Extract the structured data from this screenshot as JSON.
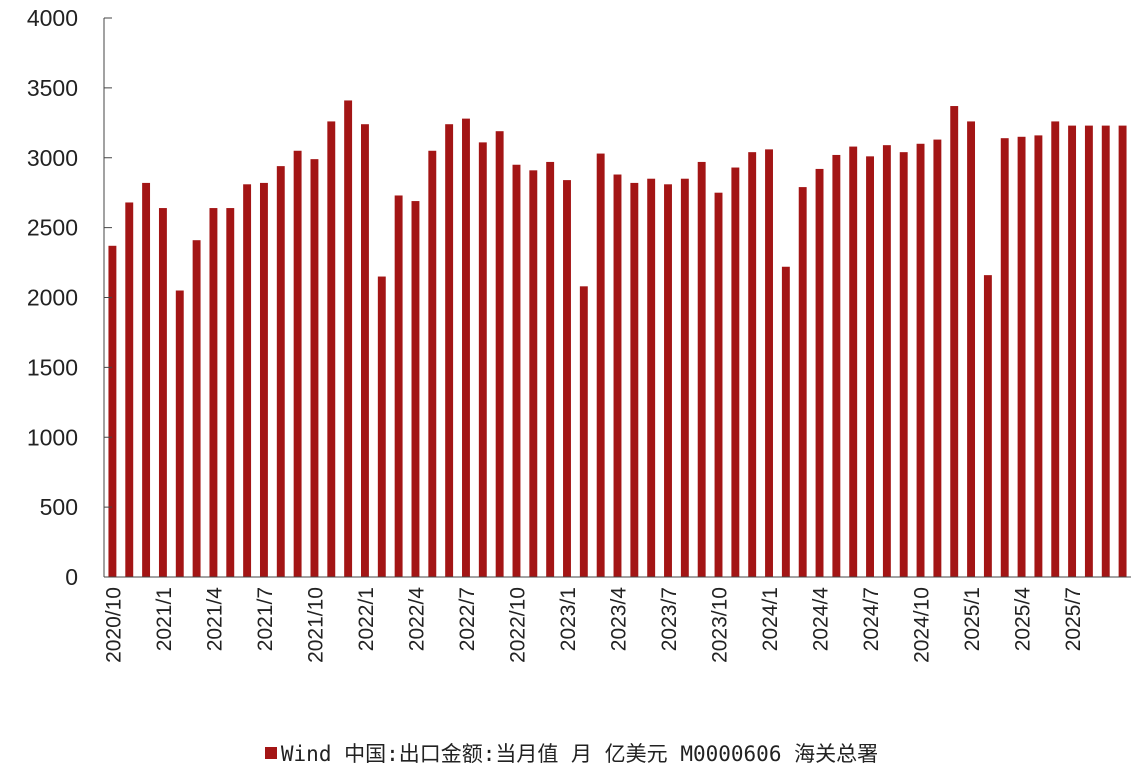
{
  "chart_data": {
    "type": "bar",
    "title": "",
    "xlabel": "",
    "ylabel": "",
    "ylim": [
      0,
      4000
    ],
    "yticks": [
      0,
      500,
      1000,
      1500,
      2000,
      2500,
      3000,
      3500,
      4000
    ],
    "grid": false,
    "legend_position": "bottom",
    "categories": [
      "2020/10",
      "2020/11",
      "2020/12",
      "2021/1",
      "2021/2",
      "2021/3",
      "2021/4",
      "2021/5",
      "2021/6",
      "2021/7",
      "2021/8",
      "2021/9",
      "2021/10",
      "2021/11",
      "2021/12",
      "2022/1",
      "2022/2",
      "2022/3",
      "2022/4",
      "2022/5",
      "2022/6",
      "2022/7",
      "2022/8",
      "2022/9",
      "2022/10",
      "2022/11",
      "2022/12",
      "2023/1",
      "2023/2",
      "2023/3",
      "2023/4",
      "2023/5",
      "2023/6",
      "2023/7",
      "2023/8",
      "2023/9",
      "2023/10",
      "2023/11",
      "2023/12",
      "2024/1",
      "2024/2",
      "2024/3",
      "2024/4",
      "2024/5",
      "2024/6",
      "2024/7",
      "2024/8",
      "2024/9",
      "2024/10",
      "2024/11",
      "2024/12",
      "2025/1",
      "2025/2",
      "2025/3",
      "2025/4",
      "2025/5",
      "2025/6",
      "2025/7",
      "2025/8",
      "2025/9",
      "2025/10"
    ],
    "xtick_labels": [
      "2020/10",
      "2021/1",
      "2021/4",
      "2021/7",
      "2021/10",
      "2022/1",
      "2022/4",
      "2022/7",
      "2022/10",
      "2023/1",
      "2023/4",
      "2023/7",
      "2023/10",
      "2024/1",
      "2024/4",
      "2024/7",
      "2024/10",
      "2025/1",
      "2025/4",
      "2025/7"
    ],
    "series": [
      {
        "name": "Wind 中国:出口金额:当月值 月 亿美元 M0000606 海关总署",
        "color": "#a31515",
        "values": [
          2370,
          2680,
          2820,
          2640,
          2050,
          2410,
          2640,
          2640,
          2810,
          2820,
          2940,
          3050,
          2990,
          3260,
          3410,
          3240,
          2150,
          2730,
          2690,
          3050,
          3240,
          3280,
          3110,
          3190,
          2950,
          2910,
          2970,
          2840,
          2080,
          3030,
          2880,
          2820,
          2850,
          2810,
          2850,
          2970,
          2750,
          2930,
          3040,
          3060,
          2220,
          2790,
          2920,
          3020,
          3080,
          3010,
          3090,
          3040,
          3100,
          3130,
          3370,
          3260,
          2160,
          3140,
          3150,
          3160,
          3260,
          3230,
          3230,
          3230,
          3230
        ]
      }
    ]
  }
}
